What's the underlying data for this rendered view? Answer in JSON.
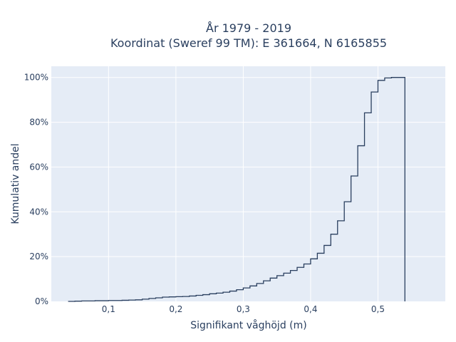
{
  "chart_data": {
    "type": "line",
    "subtype": "cumulative-step",
    "title_line1": "År 1979 - 2019",
    "title_line2": "Koordinat (Sweref 99 TM): E 361664, N 6165855",
    "xlabel": "Signifikant våghöjd (m)",
    "ylabel": "Kumulativ andel",
    "xlim": [
      0.015,
      0.6
    ],
    "ylim": [
      0,
      1.05
    ],
    "x_ticks": [
      {
        "value": 0.1,
        "label": "0,1"
      },
      {
        "value": 0.2,
        "label": "0,2"
      },
      {
        "value": 0.3,
        "label": "0,3"
      },
      {
        "value": 0.4,
        "label": "0,4"
      },
      {
        "value": 0.5,
        "label": "0,5"
      }
    ],
    "y_ticks": [
      {
        "value": 0,
        "label": "0%"
      },
      {
        "value": 0.2,
        "label": "20%"
      },
      {
        "value": 0.4,
        "label": "40%"
      },
      {
        "value": 0.6,
        "label": "60%"
      },
      {
        "value": 0.8,
        "label": "80%"
      },
      {
        "value": 1.0,
        "label": "100%"
      }
    ],
    "grid": true,
    "line_color": "#2a3f5f",
    "plot_background": "#e5ecf6",
    "grid_color": "#ffffff",
    "series": [
      {
        "x": [
          0.04,
          0.05,
          0.06,
          0.07,
          0.08,
          0.09,
          0.1,
          0.11,
          0.12,
          0.13,
          0.14,
          0.15,
          0.16,
          0.17,
          0.18,
          0.19,
          0.2,
          0.21,
          0.22,
          0.23,
          0.24,
          0.25,
          0.26,
          0.27,
          0.28,
          0.29,
          0.3,
          0.31,
          0.32,
          0.33,
          0.34,
          0.35,
          0.36,
          0.37,
          0.38,
          0.39,
          0.4,
          0.41,
          0.42,
          0.43,
          0.44,
          0.45,
          0.46,
          0.47,
          0.48,
          0.49,
          0.5,
          0.51,
          0.52,
          0.53,
          0.54
        ],
        "y": [
          0.0,
          0.001,
          0.002,
          0.002,
          0.003,
          0.003,
          0.004,
          0.004,
          0.005,
          0.006,
          0.007,
          0.01,
          0.013,
          0.016,
          0.019,
          0.02,
          0.021,
          0.022,
          0.024,
          0.027,
          0.03,
          0.034,
          0.037,
          0.041,
          0.046,
          0.052,
          0.06,
          0.069,
          0.08,
          0.092,
          0.104,
          0.115,
          0.126,
          0.138,
          0.152,
          0.167,
          0.19,
          0.215,
          0.25,
          0.3,
          0.36,
          0.445,
          0.56,
          0.695,
          0.842,
          0.935,
          0.987,
          0.998,
          1.0,
          1.0,
          1.0
        ]
      }
    ]
  }
}
